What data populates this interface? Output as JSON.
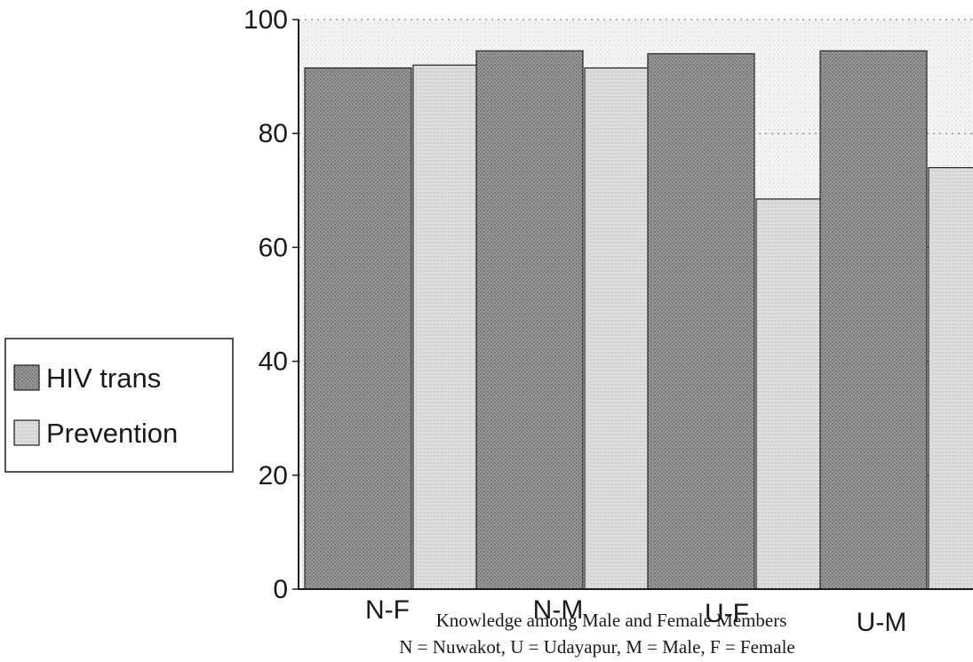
{
  "chart_data": {
    "type": "bar",
    "categories": [
      "N-F",
      "N-M",
      "U-F",
      "U-M"
    ],
    "series": [
      {
        "name": "HIV trans",
        "values": [
          91.5,
          94.5,
          94.0,
          94.5
        ]
      },
      {
        "name": "Prevention",
        "values": [
          92.0,
          91.5,
          68.5,
          74.0
        ]
      }
    ],
    "title": "",
    "xlabel": "Knowledge among Male and Female Members",
    "ylabel": "",
    "ylim": [
      0,
      100
    ],
    "yticks": [
      0,
      20,
      40,
      60,
      80,
      100
    ],
    "grid": true,
    "legend_position": "left",
    "caption": "N = Nuwakot, U = Udayapur, M = Male, F = Female"
  },
  "colors": {
    "hiv_fill": "#909090",
    "prevention_fill": "#dcdcdc",
    "plot_background": "#f3f3f3",
    "axis": "#1a1a1a"
  }
}
